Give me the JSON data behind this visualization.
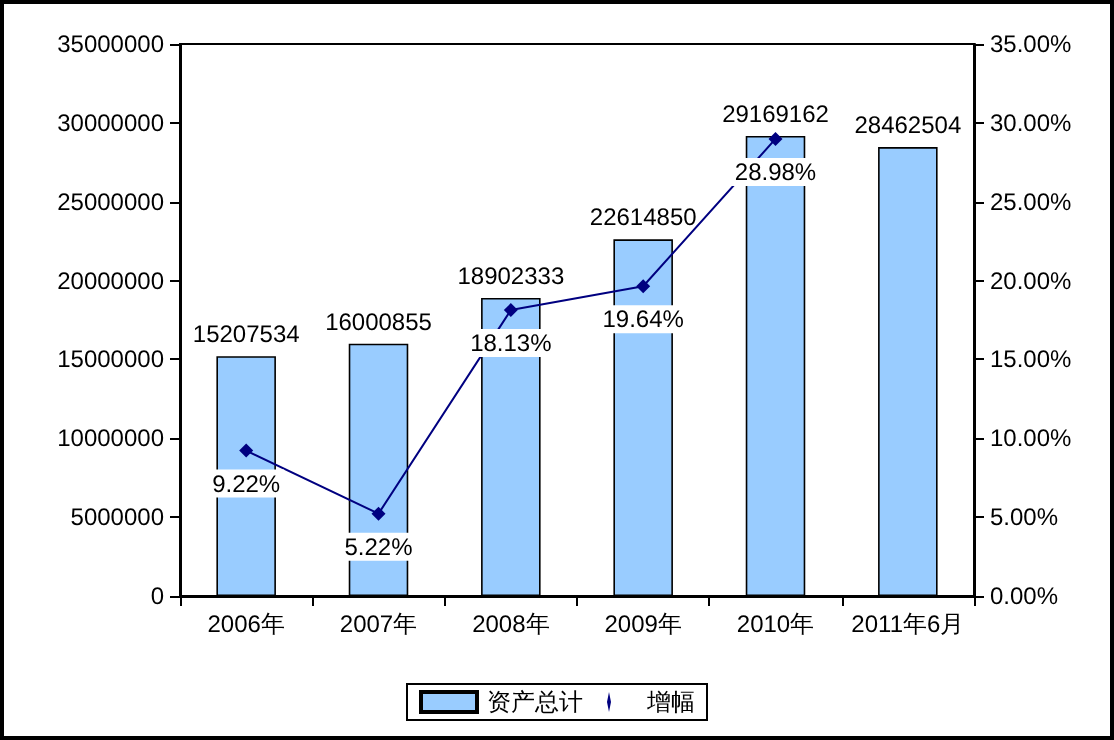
{
  "chart_data": {
    "type": "bar",
    "categories": [
      "2006年",
      "2007年",
      "2008年",
      "2009年",
      "2010年",
      "2011年6月"
    ],
    "series": [
      {
        "name": "资产总计",
        "color": "#99ccff",
        "values": [
          15207534,
          16000855,
          18902333,
          22614850,
          29169162,
          28462504
        ],
        "value_labels": [
          "15207534",
          "16000855",
          "18902333",
          "22614850",
          "29169162",
          "28462504"
        ]
      },
      {
        "name": "增幅",
        "type": "line",
        "axis": "y2",
        "color": "#000080",
        "marker": "diamond",
        "line_style": "solid",
        "values": [
          9.22,
          5.22,
          18.13,
          19.64,
          28.98,
          null
        ],
        "value_labels": [
          "9.22%",
          "5.22%",
          "18.13%",
          "19.64%",
          "28.98%",
          null
        ]
      }
    ],
    "ylim": [
      0,
      35000000
    ],
    "yticks": [
      0,
      5000000,
      10000000,
      15000000,
      20000000,
      25000000,
      30000000,
      35000000
    ],
    "y2lim": [
      0,
      35
    ],
    "y2ticks": [
      {
        "value": 0,
        "label": "0.00%"
      },
      {
        "value": 5,
        "label": "5.00%"
      },
      {
        "value": 10,
        "label": "10.00%"
      },
      {
        "value": 15,
        "label": "15.00%"
      },
      {
        "value": 20,
        "label": "20.00%"
      },
      {
        "value": 25,
        "label": "25.00%"
      },
      {
        "value": 30,
        "label": "30.00%"
      },
      {
        "value": 35,
        "label": "35.00%"
      }
    ],
    "grid": false,
    "legend": "bottom"
  }
}
